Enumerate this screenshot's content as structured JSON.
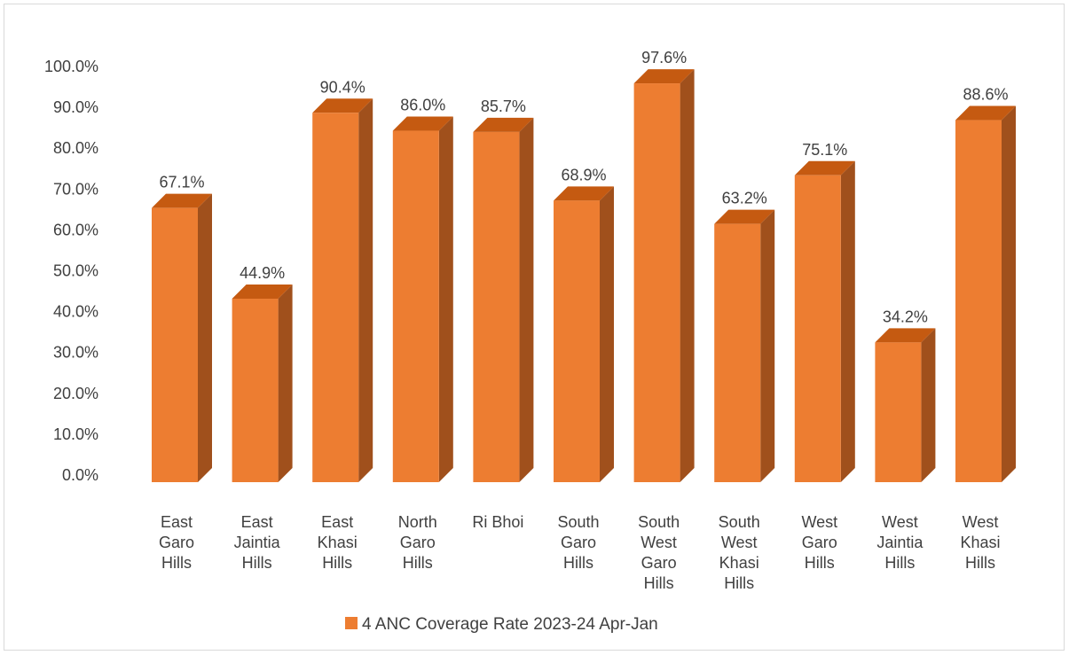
{
  "chart_data": {
    "type": "bar",
    "style": "3d-column",
    "categories": [
      [
        "East",
        "Garo",
        "Hills"
      ],
      [
        "East",
        "Jaintia",
        "Hills"
      ],
      [
        "East",
        "Khasi",
        "Hills"
      ],
      [
        "North",
        "Garo",
        "Hills"
      ],
      [
        "Ri Bhoi"
      ],
      [
        "South",
        "Garo",
        "Hills"
      ],
      [
        "South",
        "West",
        "Garo",
        "Hills"
      ],
      [
        "South",
        "West",
        "Khasi",
        "Hills"
      ],
      [
        "West",
        "Garo",
        "Hills"
      ],
      [
        "West",
        "Jaintia",
        "Hills"
      ],
      [
        "West",
        "Khasi",
        "Hills"
      ]
    ],
    "series": [
      {
        "name": "4 ANC Coverage Rate 2023-24 Apr-Jan",
        "values": [
          67.1,
          44.9,
          90.4,
          86.0,
          85.7,
          68.9,
          97.6,
          63.2,
          75.1,
          34.2,
          88.6
        ],
        "data_labels": [
          "67.1%",
          "44.9%",
          "90.4%",
          "86.0%",
          "85.7%",
          "68.9%",
          "97.6%",
          "63.2%",
          "75.1%",
          "34.2%",
          "88.6%"
        ]
      }
    ],
    "y_ticks": [
      "0.0%",
      "10.0%",
      "20.0%",
      "30.0%",
      "40.0%",
      "50.0%",
      "60.0%",
      "70.0%",
      "80.0%",
      "90.0%",
      "100.0%"
    ],
    "ylim": [
      0,
      100
    ],
    "grid": false,
    "legend_position": "bottom",
    "colors": {
      "front": "#ED7D31",
      "side": "#A0501C",
      "top": "#C55A11"
    }
  }
}
